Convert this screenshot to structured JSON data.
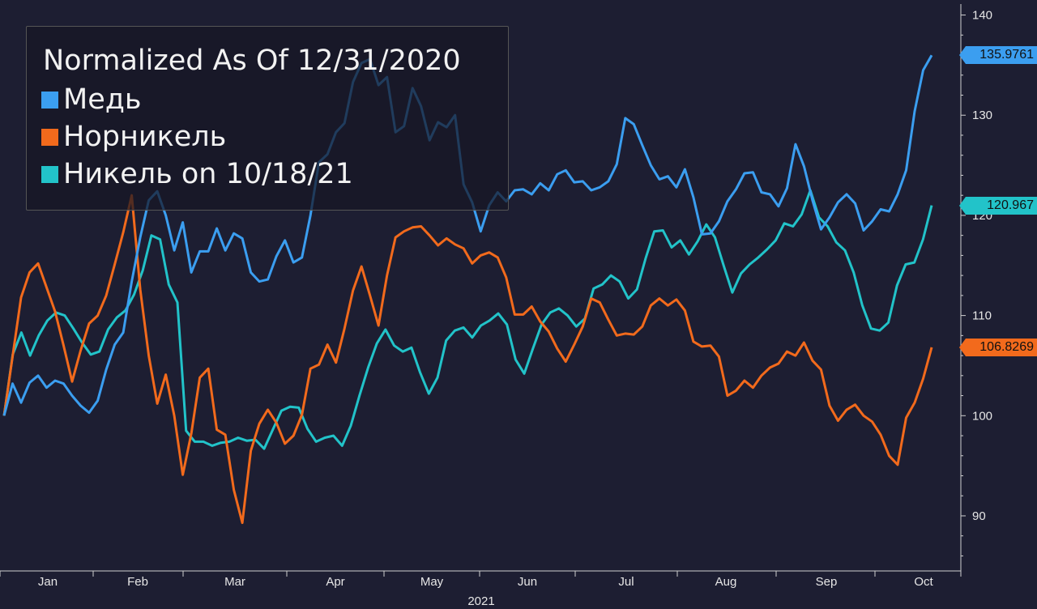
{
  "chart_data": {
    "type": "line",
    "title": "Normalized As Of 12/31/2020",
    "year_label": "2021",
    "x_ticks": [
      "Jan",
      "Feb",
      "Mar",
      "Apr",
      "May",
      "Jun",
      "Jul",
      "Aug",
      "Sep",
      "Oct"
    ],
    "y_ticks": [
      90,
      100,
      110,
      120,
      130,
      140
    ],
    "ylim": [
      84.5,
      141.5
    ],
    "grid": false,
    "legend_position": "top-left",
    "series": [
      {
        "name": "Медь",
        "color": "#3b9ef0",
        "last_value": "135.9761",
        "values": [
          100.0,
          103.2,
          101.3,
          103.3,
          104.0,
          102.8,
          103.5,
          103.2,
          102.0,
          101.0,
          100.3,
          101.5,
          104.6,
          107.1,
          108.3,
          113.4,
          117.8,
          121.5,
          122.4,
          120.0,
          116.5,
          119.3,
          114.3,
          116.4,
          116.4,
          118.7,
          116.5,
          118.2,
          117.7,
          114.3,
          113.4,
          113.6,
          115.9,
          117.5,
          115.3,
          115.8,
          120.0,
          125.3,
          126.1,
          128.3,
          129.2,
          133.3,
          135.2,
          135.6,
          133.0,
          133.8,
          128.3,
          128.9,
          132.7,
          130.9,
          127.5,
          129.3,
          128.8,
          130.0,
          123.1,
          121.3,
          118.4,
          121.0,
          122.3,
          121.4,
          122.5,
          122.6,
          122.1,
          123.2,
          122.5,
          124.1,
          124.5,
          123.3,
          123.4,
          122.5,
          122.8,
          123.4,
          125.1,
          129.7,
          129.1,
          127.0,
          125.0,
          123.6,
          123.9,
          122.8,
          124.6,
          121.8,
          118.1,
          118.2,
          119.4,
          121.4,
          122.6,
          124.2,
          124.3,
          122.3,
          122.1,
          120.9,
          122.7,
          127.1,
          124.9,
          121.5,
          118.6,
          119.8,
          121.3,
          122.1,
          121.2,
          118.5,
          119.4,
          120.6,
          120.4,
          122.1,
          124.5,
          130.4,
          134.5,
          135.9761
        ]
      },
      {
        "name": "Норникель",
        "color": "#f26a1c",
        "last_value": "106.8269",
        "values": [
          100.0,
          105.9,
          111.8,
          114.3,
          115.2,
          112.8,
          110.4,
          107.0,
          103.4,
          106.5,
          109.2,
          110.0,
          112.0,
          115.1,
          118.3,
          122.0,
          112.6,
          106.0,
          101.2,
          104.1,
          100.0,
          94.1,
          98.2,
          103.8,
          104.7,
          98.6,
          98.1,
          92.6,
          89.3,
          96.5,
          99.2,
          100.6,
          99.3,
          97.2,
          98.0,
          100.1,
          104.7,
          105.1,
          107.1,
          105.3,
          108.7,
          112.5,
          114.9,
          112.0,
          109.0,
          114.0,
          117.8,
          118.4,
          118.8,
          118.9,
          118.0,
          117.0,
          117.7,
          117.1,
          116.7,
          115.2,
          116.0,
          116.3,
          115.8,
          113.8,
          110.1,
          110.1,
          110.9,
          109.4,
          108.4,
          106.7,
          105.4,
          107.1,
          108.9,
          111.7,
          111.3,
          109.6,
          108.0,
          108.2,
          108.1,
          108.9,
          111.0,
          111.7,
          111.0,
          111.6,
          110.5,
          107.4,
          106.9,
          107.0,
          105.9,
          102.0,
          102.5,
          103.5,
          102.8,
          104.0,
          104.8,
          105.2,
          106.4,
          106.0,
          107.3,
          105.5,
          104.6,
          101.0,
          99.5,
          100.6,
          101.1,
          100.0,
          99.4,
          98.1,
          96.0,
          95.1,
          99.8,
          101.3,
          103.7,
          106.8269
        ]
      },
      {
        "name": "Никель on 10/18/21",
        "color": "#22c3c9",
        "values": [
          100.0,
          106.1,
          108.3,
          106.0,
          108.0,
          109.5,
          110.3,
          110.0,
          108.7,
          107.3,
          106.1,
          106.4,
          108.6,
          109.8,
          110.5,
          112.1,
          114.5,
          118.0,
          117.6,
          113.1,
          111.3,
          98.5,
          97.4,
          97.4,
          97.0,
          97.3,
          97.4,
          97.8,
          97.5,
          97.6,
          96.7,
          98.6,
          100.5,
          100.9,
          100.8,
          98.7,
          97.4,
          97.8,
          98.0,
          97.0,
          99.0,
          102.0,
          104.8,
          107.2,
          108.6,
          107.0,
          106.4,
          106.8,
          104.3,
          102.2,
          103.8,
          107.5,
          108.5,
          108.8,
          107.8,
          109.0,
          109.5,
          110.2,
          109.1,
          105.6,
          104.2,
          106.7,
          109.1,
          110.3,
          110.7,
          110.0,
          108.9,
          109.7,
          112.7,
          113.1,
          114.0,
          113.4,
          111.7,
          112.6,
          115.7,
          118.4,
          118.5,
          116.8,
          117.5,
          116.1,
          117.4,
          119.1,
          117.8,
          115.0,
          112.3,
          114.2,
          115.1,
          115.8,
          116.6,
          117.5,
          119.2,
          118.9,
          120.1,
          122.5,
          119.8,
          118.9,
          117.3,
          116.5,
          114.3,
          111.0,
          108.7,
          108.5,
          109.3,
          113.0,
          115.1,
          115.3,
          117.6,
          121.0
        ]
      }
    ]
  }
}
